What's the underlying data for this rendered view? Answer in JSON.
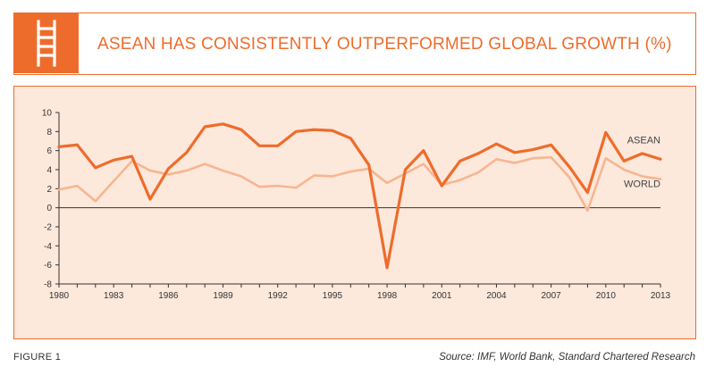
{
  "header": {
    "title": "ASEAN HAS CONSISTENTLY OUTPERFORMED GLOBAL GROWTH (%)",
    "icon": "ladder-icon"
  },
  "footer": {
    "figure_label": "FIGURE 1",
    "source": "Source: IMF, World Bank, Standard Chartered Research"
  },
  "colors": {
    "accent": "#ee6c2b",
    "world": "#f6b690",
    "panel": "#fde8dc"
  },
  "chart_data": {
    "type": "line",
    "title": "ASEAN HAS CONSISTENTLY OUTPERFORMED GLOBAL GROWTH (%)",
    "x": [
      1980,
      1981,
      1982,
      1983,
      1984,
      1985,
      1986,
      1987,
      1988,
      1989,
      1990,
      1991,
      1992,
      1993,
      1994,
      1995,
      1996,
      1997,
      1998,
      1999,
      2000,
      2001,
      2002,
      2003,
      2004,
      2005,
      2006,
      2007,
      2008,
      2009,
      2010,
      2011,
      2012,
      2013
    ],
    "xticks": [
      "1980",
      "1983",
      "1986",
      "1989",
      "1992",
      "1995",
      "1998",
      "2001",
      "2004",
      "2007",
      "2010",
      "2013"
    ],
    "yticks": [
      "10",
      "8",
      "6",
      "4",
      "2",
      "0",
      "-2",
      "-4",
      "-6",
      "-8"
    ],
    "ylim": [
      -8,
      10
    ],
    "xlim": [
      1980,
      2013
    ],
    "series": [
      {
        "name": "ASEAN",
        "color": "#ee6c2b",
        "values": [
          6.4,
          6.6,
          4.2,
          5.0,
          5.4,
          0.9,
          4.1,
          5.8,
          8.5,
          8.8,
          8.2,
          6.5,
          6.5,
          8.0,
          8.2,
          8.1,
          7.3,
          4.5,
          -6.3,
          4.0,
          6.0,
          2.3,
          4.9,
          5.7,
          6.7,
          5.8,
          6.1,
          6.6,
          4.3,
          1.6,
          7.9,
          4.9,
          5.7,
          5.1
        ]
      },
      {
        "name": "WORLD",
        "color": "#f6b690",
        "values": [
          1.9,
          2.3,
          0.7,
          2.8,
          4.9,
          3.9,
          3.5,
          3.9,
          4.6,
          3.9,
          3.3,
          2.2,
          2.3,
          2.1,
          3.4,
          3.3,
          3.8,
          4.1,
          2.6,
          3.6,
          4.6,
          2.4,
          2.9,
          3.7,
          5.1,
          4.7,
          5.2,
          5.3,
          3.2,
          -0.3,
          5.2,
          4.0,
          3.3,
          3.0
        ]
      }
    ],
    "grid": false
  }
}
